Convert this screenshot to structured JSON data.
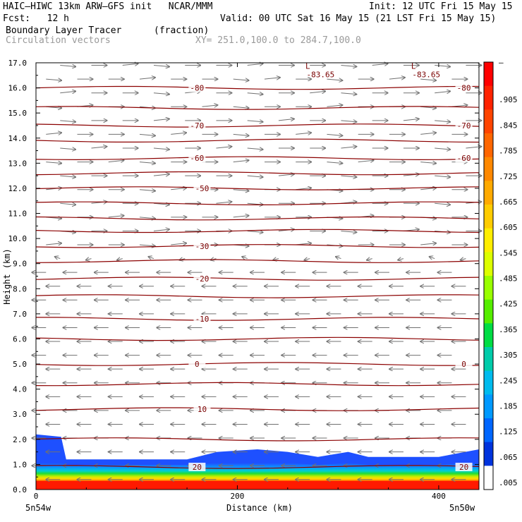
{
  "header": {
    "model": "HAIC–HIWC 13km ARW–GFS init   NCAR/MMM",
    "init": "Init: 12 UTC Fri 15 May 15",
    "fcst": "Fcst:   12 h",
    "valid": "Valid: 00 UTC Sat 16 May 15 (21 LST Fri 15 May 15)",
    "field1": "Boundary Layer Tracer",
    "field1_units": "(fraction)",
    "field2": "Circulation vectors",
    "xy": "XY= 251.0,100.0 to 284.7,100.0"
  },
  "axes": {
    "x_label": "Distance (km)",
    "y_label": "Height (km)",
    "x_ticks": [
      "0",
      "200",
      "400"
    ],
    "x_left_endpoint": "5n54w",
    "x_right_endpoint": "5n50w",
    "y_ticks": [
      "0.0",
      "1.0",
      "2.0",
      "3.0",
      "4.0",
      "5.0",
      "6.0",
      "7.0",
      "8.0",
      "9.0",
      "10.0",
      "11.0",
      "12.0",
      "13.0",
      "14.0",
      "15.0",
      "16.0",
      "17.0"
    ]
  },
  "colorbar": {
    "labels": [
      "–",
      ".905",
      ".845",
      ".785",
      ".725",
      ".665",
      ".605",
      ".545",
      ".485",
      ".425",
      ".365",
      ".305",
      ".245",
      ".185",
      ".125",
      ".065",
      ".005"
    ],
    "colors": [
      "#ff0000",
      "#ff2200",
      "#ff4400",
      "#ff6600",
      "#ff8800",
      "#ffaa00",
      "#ffcc00",
      "#ffee00",
      "#ddff00",
      "#99ff00",
      "#55ee00",
      "#00dd44",
      "#00ccaa",
      "#00bbee",
      "#0099ff",
      "#0066ff",
      "#0033dd",
      "#ffffff"
    ]
  },
  "chart_data": {
    "type": "heatmap",
    "xlim": [
      0,
      440
    ],
    "ylim": [
      0.0,
      17.0
    ],
    "grid": false,
    "boundary_layer_tracer": {
      "surface_value": 0.95,
      "top_height_km": [
        {
          "x": 0,
          "z": 2.2
        },
        {
          "x": 25,
          "z": 2.1
        },
        {
          "x": 30,
          "z": 1.2
        },
        {
          "x": 150,
          "z": 1.2
        },
        {
          "x": 180,
          "z": 1.5
        },
        {
          "x": 220,
          "z": 1.6
        },
        {
          "x": 250,
          "z": 1.5
        },
        {
          "x": 280,
          "z": 1.3
        },
        {
          "x": 310,
          "z": 1.5
        },
        {
          "x": 330,
          "z": 1.3
        },
        {
          "x": 400,
          "z": 1.3
        },
        {
          "x": 440,
          "z": 1.6
        }
      ]
    },
    "temperature_contours": [
      {
        "label": "-80",
        "z": 16.0
      },
      {
        "label": "",
        "z": 15.2
      },
      {
        "label": "-70",
        "z": 14.5
      },
      {
        "label": "",
        "z": 13.9
      },
      {
        "label": "-60",
        "z": 13.2
      },
      {
        "label": "",
        "z": 12.6
      },
      {
        "label": "-50",
        "z": 12.0
      },
      {
        "label": "",
        "z": 11.4
      },
      {
        "label": "",
        "z": 10.8
      },
      {
        "label": "",
        "z": 10.3
      },
      {
        "label": "-30",
        "z": 9.7
      },
      {
        "label": "",
        "z": 9.1
      },
      {
        "label": "-20",
        "z": 8.4
      },
      {
        "label": "",
        "z": 7.7
      },
      {
        "label": "-10",
        "z": 6.8
      },
      {
        "label": "",
        "z": 6.0
      },
      {
        "label": "0",
        "z": 5.0
      },
      {
        "label": "",
        "z": 4.2
      },
      {
        "label": "10",
        "z": 3.2
      },
      {
        "label": "",
        "z": 2.0
      },
      {
        "label": "20",
        "z": 0.9
      }
    ],
    "minimum_labels": [
      {
        "letter": "L",
        "value": "-83.65",
        "x": 270,
        "z": 16.7
      },
      {
        "letter": "L",
        "value": "-83.65",
        "x": 375,
        "z": 16.7
      }
    ],
    "wind_vectors": [
      {
        "z_min": 9.5,
        "z_max": 17.0,
        "direction": "east"
      },
      {
        "z_min": 8.8,
        "z_max": 9.5,
        "direction": "variable"
      },
      {
        "z_min": 0.0,
        "z_max": 8.8,
        "direction": "west"
      }
    ]
  }
}
